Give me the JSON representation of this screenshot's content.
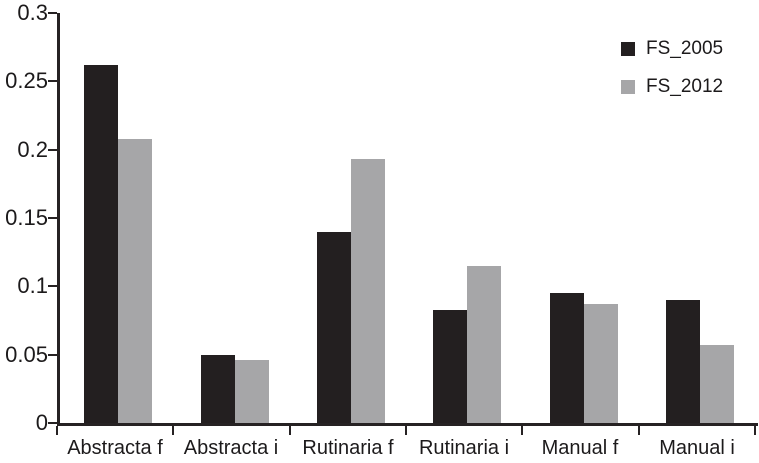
{
  "chart_data": {
    "type": "bar",
    "title": "",
    "xlabel": "",
    "ylabel": "",
    "categories": [
      "Abstracta f",
      "Abstracta i",
      "Rutinaria f",
      "Rutinaria i",
      "Manual f",
      "Manual i"
    ],
    "series": [
      {
        "name": "FS_2005",
        "color": "#231f20",
        "values": [
          0.262,
          0.05,
          0.14,
          0.083,
          0.095,
          0.09
        ]
      },
      {
        "name": "FS_2012",
        "color": "#a6a6a8",
        "values": [
          0.208,
          0.046,
          0.193,
          0.115,
          0.087,
          0.057
        ]
      }
    ],
    "ylim": [
      0,
      0.3
    ],
    "ytick_interval": 0.05,
    "ytick_labels": [
      "0",
      "0.05",
      "0.1",
      "0.15",
      "0.2",
      "0.25",
      "0.3"
    ],
    "grid": false,
    "legend_position": "top-right",
    "axis_color": "#262223",
    "text_color": "#1c1a1b"
  }
}
